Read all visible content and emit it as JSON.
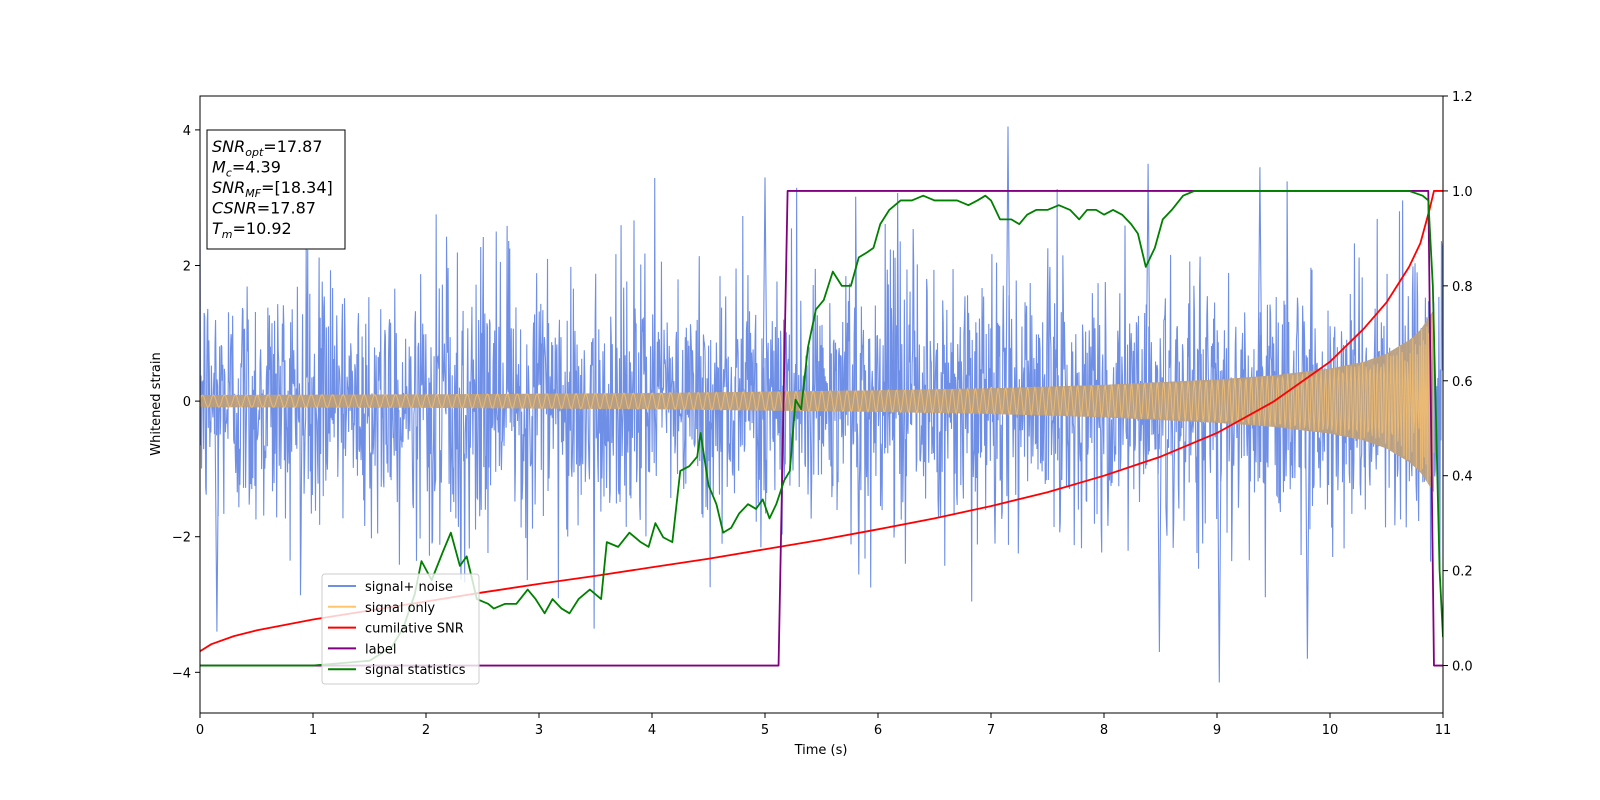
{
  "chart_data": {
    "type": "line",
    "xlabel": "Time (s)",
    "ylabel": "Whitened strain",
    "xlim": [
      0,
      11
    ],
    "ylim_left": [
      -4.6,
      4.5
    ],
    "ylim_right": [
      -0.1,
      1.2
    ],
    "x_ticks": [
      "0",
      "1",
      "2",
      "3",
      "4",
      "5",
      "6",
      "7",
      "8",
      "9",
      "10",
      "11"
    ],
    "y_left_ticks": [
      "4",
      "2",
      "0",
      "−2",
      "−4"
    ],
    "y_left_tick_values": [
      4,
      2,
      0,
      -2,
      -4
    ],
    "y_right_ticks": [
      "1.2",
      "1.0",
      "0.8",
      "0.6",
      "0.4",
      "0.2",
      "0.0"
    ],
    "y_right_tick_values": [
      1.2,
      1.0,
      0.8,
      0.6,
      0.4,
      0.2,
      0.0
    ],
    "grid": false,
    "legend_position": "lower-left",
    "info_box": {
      "lines": [
        {
          "main": "SNR",
          "sub": "opt",
          "value": "=17.87"
        },
        {
          "main": "M",
          "sub": "c",
          "value": "=4.39"
        },
        {
          "main": "SNR",
          "sub": "MF",
          "value": "=[18.34]"
        },
        {
          "main": "CSNR",
          "sub": "",
          "value": "=17.87"
        },
        {
          "main": "T",
          "sub": "m",
          "value": "=10.92"
        }
      ]
    },
    "series": [
      {
        "name": "signal+ noise",
        "axis": "left",
        "color": "#6f8fe6",
        "kind": "noisy",
        "t_merge": 10.92,
        "noise_sigma": 0.95,
        "notable_peaks": [
          {
            "x": 7.15,
            "y": 4.05
          },
          {
            "x": 9.02,
            "y": -4.15
          },
          {
            "x": 8.39,
            "y": 3.5
          },
          {
            "x": 9.38,
            "y": 3.45
          },
          {
            "x": 0.15,
            "y": -3.4
          },
          {
            "x": 8.49,
            "y": -3.7
          },
          {
            "x": 9.8,
            "y": -3.8
          },
          {
            "x": 5.0,
            "y": 3.3
          }
        ]
      },
      {
        "name": "signal only",
        "axis": "left",
        "color": "#ffc56e",
        "kind": "chirp",
        "t_merge": 10.92,
        "amplitude_envelope": [
          [
            0.0,
            0.09
          ],
          [
            2.0,
            0.1
          ],
          [
            4.0,
            0.12
          ],
          [
            5.0,
            0.14
          ],
          [
            6.0,
            0.16
          ],
          [
            7.0,
            0.19
          ],
          [
            8.0,
            0.24
          ],
          [
            9.0,
            0.32
          ],
          [
            9.5,
            0.38
          ],
          [
            10.0,
            0.48
          ],
          [
            10.3,
            0.58
          ],
          [
            10.5,
            0.7
          ],
          [
            10.7,
            0.9
          ],
          [
            10.8,
            1.05
          ],
          [
            10.9,
            1.3
          ],
          [
            10.92,
            1.35
          ]
        ]
      },
      {
        "name": "cumilative SNR",
        "axis": "right",
        "color": "#ff0000",
        "kind": "line",
        "points": [
          [
            0.0,
            0.03
          ],
          [
            0.1,
            0.045
          ],
          [
            0.3,
            0.062
          ],
          [
            0.5,
            0.074
          ],
          [
            1.0,
            0.097
          ],
          [
            1.5,
            0.116
          ],
          [
            2.0,
            0.135
          ],
          [
            2.5,
            0.154
          ],
          [
            3.0,
            0.172
          ],
          [
            3.5,
            0.189
          ],
          [
            4.0,
            0.207
          ],
          [
            4.5,
            0.225
          ],
          [
            5.0,
            0.245
          ],
          [
            5.5,
            0.265
          ],
          [
            6.0,
            0.287
          ],
          [
            6.5,
            0.31
          ],
          [
            7.0,
            0.336
          ],
          [
            7.5,
            0.365
          ],
          [
            8.0,
            0.4
          ],
          [
            8.5,
            0.44
          ],
          [
            9.0,
            0.49
          ],
          [
            9.5,
            0.556
          ],
          [
            10.0,
            0.64
          ],
          [
            10.3,
            0.71
          ],
          [
            10.5,
            0.765
          ],
          [
            10.7,
            0.84
          ],
          [
            10.8,
            0.89
          ],
          [
            10.88,
            0.96
          ],
          [
            10.92,
            1.0
          ],
          [
            11.0,
            1.0
          ]
        ]
      },
      {
        "name": "label",
        "axis": "right",
        "color": "#800080",
        "kind": "line",
        "points": [
          [
            0.0,
            0.0
          ],
          [
            5.12,
            0.0
          ],
          [
            5.2,
            1.0
          ],
          [
            10.87,
            1.0
          ],
          [
            10.92,
            0.0
          ],
          [
            11.0,
            0.0
          ]
        ]
      },
      {
        "name": "signal statistics",
        "axis": "right",
        "color": "#008000",
        "kind": "line",
        "points": [
          [
            0.0,
            0.0
          ],
          [
            1.0,
            0.0
          ],
          [
            1.5,
            0.01
          ],
          [
            1.7,
            0.04
          ],
          [
            1.8,
            0.08
          ],
          [
            1.9,
            0.15
          ],
          [
            1.96,
            0.22
          ],
          [
            2.05,
            0.18
          ],
          [
            2.15,
            0.24
          ],
          [
            2.22,
            0.28
          ],
          [
            2.3,
            0.21
          ],
          [
            2.36,
            0.23
          ],
          [
            2.45,
            0.14
          ],
          [
            2.55,
            0.13
          ],
          [
            2.6,
            0.12
          ],
          [
            2.7,
            0.13
          ],
          [
            2.8,
            0.13
          ],
          [
            2.9,
            0.16
          ],
          [
            2.97,
            0.14
          ],
          [
            3.05,
            0.11
          ],
          [
            3.12,
            0.14
          ],
          [
            3.2,
            0.12
          ],
          [
            3.27,
            0.11
          ],
          [
            3.35,
            0.14
          ],
          [
            3.45,
            0.16
          ],
          [
            3.55,
            0.14
          ],
          [
            3.6,
            0.26
          ],
          [
            3.7,
            0.25
          ],
          [
            3.8,
            0.28
          ],
          [
            3.9,
            0.26
          ],
          [
            3.97,
            0.25
          ],
          [
            4.03,
            0.3
          ],
          [
            4.1,
            0.27
          ],
          [
            4.18,
            0.26
          ],
          [
            4.25,
            0.41
          ],
          [
            4.33,
            0.42
          ],
          [
            4.4,
            0.44
          ],
          [
            4.43,
            0.49
          ],
          [
            4.5,
            0.38
          ],
          [
            4.57,
            0.34
          ],
          [
            4.63,
            0.28
          ],
          [
            4.7,
            0.29
          ],
          [
            4.77,
            0.32
          ],
          [
            4.85,
            0.34
          ],
          [
            4.92,
            0.33
          ],
          [
            4.98,
            0.35
          ],
          [
            5.04,
            0.31
          ],
          [
            5.1,
            0.34
          ],
          [
            5.17,
            0.39
          ],
          [
            5.22,
            0.41
          ],
          [
            5.27,
            0.56
          ],
          [
            5.32,
            0.54
          ],
          [
            5.38,
            0.67
          ],
          [
            5.45,
            0.75
          ],
          [
            5.52,
            0.77
          ],
          [
            5.6,
            0.83
          ],
          [
            5.68,
            0.8
          ],
          [
            5.76,
            0.8
          ],
          [
            5.83,
            0.86
          ],
          [
            5.9,
            0.87
          ],
          [
            5.96,
            0.88
          ],
          [
            6.02,
            0.93
          ],
          [
            6.1,
            0.96
          ],
          [
            6.2,
            0.98
          ],
          [
            6.3,
            0.98
          ],
          [
            6.4,
            0.99
          ],
          [
            6.5,
            0.98
          ],
          [
            6.6,
            0.98
          ],
          [
            6.7,
            0.98
          ],
          [
            6.8,
            0.97
          ],
          [
            6.88,
            0.98
          ],
          [
            6.95,
            0.99
          ],
          [
            7.0,
            0.98
          ],
          [
            7.08,
            0.94
          ],
          [
            7.18,
            0.94
          ],
          [
            7.25,
            0.93
          ],
          [
            7.32,
            0.95
          ],
          [
            7.4,
            0.96
          ],
          [
            7.5,
            0.96
          ],
          [
            7.6,
            0.97
          ],
          [
            7.7,
            0.96
          ],
          [
            7.78,
            0.94
          ],
          [
            7.85,
            0.96
          ],
          [
            7.93,
            0.96
          ],
          [
            8.0,
            0.95
          ],
          [
            8.08,
            0.96
          ],
          [
            8.16,
            0.95
          ],
          [
            8.24,
            0.93
          ],
          [
            8.3,
            0.91
          ],
          [
            8.37,
            0.84
          ],
          [
            8.45,
            0.88
          ],
          [
            8.52,
            0.94
          ],
          [
            8.6,
            0.96
          ],
          [
            8.7,
            0.99
          ],
          [
            8.8,
            1.0
          ],
          [
            8.95,
            1.0
          ],
          [
            9.1,
            1.0
          ],
          [
            9.3,
            1.0
          ],
          [
            9.6,
            1.0
          ],
          [
            10.0,
            1.0
          ],
          [
            10.4,
            1.0
          ],
          [
            10.7,
            1.0
          ],
          [
            10.82,
            0.99
          ],
          [
            10.87,
            0.98
          ],
          [
            10.91,
            0.8
          ],
          [
            10.94,
            0.5
          ],
          [
            10.97,
            0.2
          ],
          [
            11.0,
            0.06
          ]
        ]
      }
    ]
  }
}
